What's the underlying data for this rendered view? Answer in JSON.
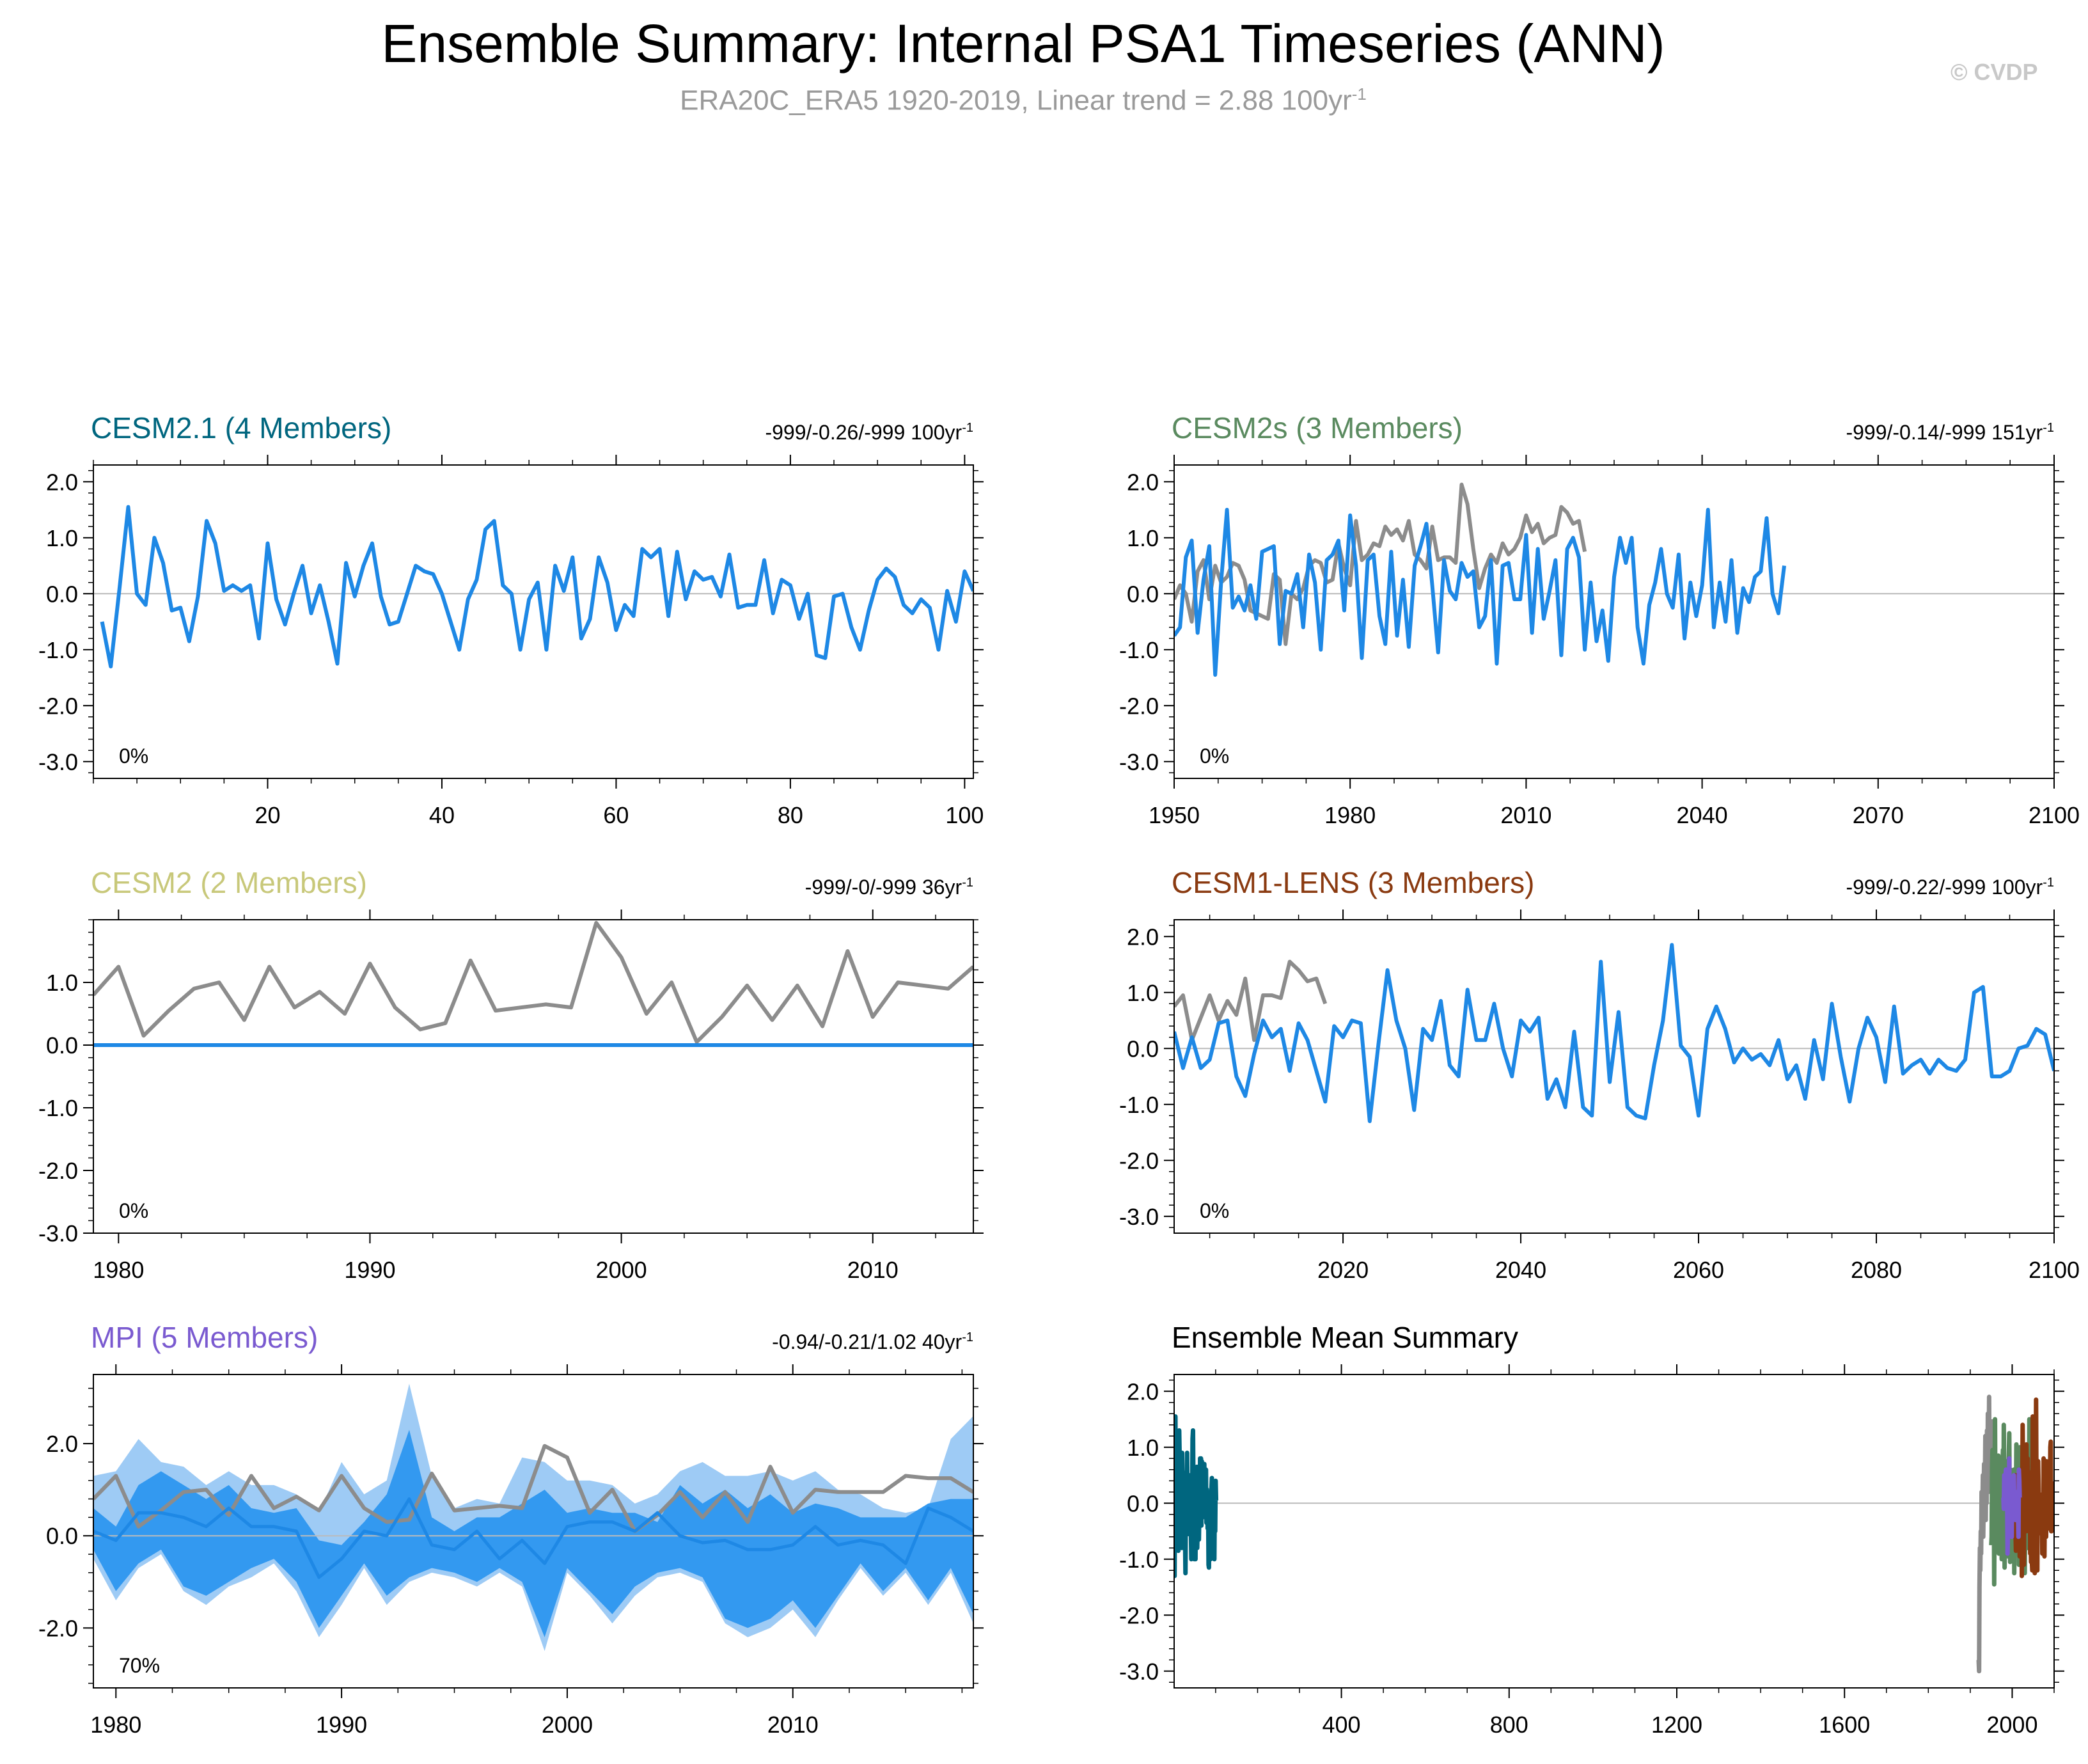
{
  "title": "Ensemble Summary: Internal PSA1 Timeseries (ANN)",
  "subtitle_main": "ERA20C_ERA5 1920-2019, Linear trend = 2.88 100yr",
  "subtitle_exp": "-1",
  "copyright": "© CVDP",
  "colors": {
    "model_line": "#1e88e5",
    "obs_line": "#8c8c8c",
    "spread_outer": "#9ecbf5",
    "spread_inner": "#3399f0"
  },
  "chart_data": [
    {
      "type": "line",
      "title": "CESM2.1 (4 Members)",
      "title_color": "#00667f",
      "right_label": "-999/-0.26/-999 100yr",
      "right_exp": "-1",
      "percent": "0%",
      "xlim": [
        0,
        101
      ],
      "ylim": [
        -3.3,
        2.3
      ],
      "yticks": [
        2.0,
        1.0,
        0.0,
        -1.0,
        -2.0,
        -3.0
      ],
      "ytick_labels": [
        "2.0",
        "1.0",
        "0.0",
        "-1.0",
        "-2.0",
        "-3.0"
      ],
      "xticks": [
        20,
        40,
        60,
        80,
        100
      ],
      "xtick_labels": [
        "20",
        "40",
        "60",
        "80",
        "100"
      ],
      "series": [
        {
          "role": "model",
          "x_start": 1,
          "x_step": 1,
          "values": [
            -0.5,
            -1.3,
            0.1,
            1.55,
            0.0,
            -0.2,
            1.0,
            0.55,
            -0.3,
            -0.25,
            -0.85,
            -0.05,
            1.3,
            0.9,
            0.05,
            0.15,
            0.05,
            0.15,
            -0.8,
            0.9,
            -0.1,
            -0.55,
            0.0,
            0.5,
            -0.35,
            0.15,
            -0.5,
            -1.25,
            0.55,
            -0.05,
            0.5,
            0.9,
            -0.05,
            -0.55,
            -0.5,
            0.0,
            0.5,
            0.4,
            0.35,
            0.0,
            -0.5,
            -1.0,
            -0.1,
            0.25,
            1.15,
            1.3,
            0.15,
            0.0,
            -1.0,
            -0.1,
            0.2,
            -1.0,
            0.5,
            0.05,
            0.65,
            -0.8,
            -0.45,
            0.65,
            0.2,
            -0.65,
            -0.2,
            -0.4,
            0.8,
            0.65,
            0.8,
            -0.4,
            0.75,
            -0.1,
            0.4,
            0.25,
            0.3,
            -0.05,
            0.7,
            -0.25,
            -0.2,
            -0.2,
            0.6,
            -0.35,
            0.25,
            0.15,
            -0.45,
            0.0,
            -1.1,
            -1.15,
            -0.05,
            0.0,
            -0.6,
            -1.0,
            -0.3,
            0.25,
            0.45,
            0.3,
            -0.2,
            -0.35,
            -0.1,
            -0.25,
            -1.0,
            0.05,
            -0.5,
            0.4,
            0.05
          ]
        }
      ]
    },
    {
      "type": "line",
      "title": "CESM2s (3 Members)",
      "title_color": "#5a8a5f",
      "right_label": "-999/-0.14/-999 151yr",
      "right_exp": "-1",
      "percent": "0%",
      "xlim": [
        1950,
        2100
      ],
      "ylim": [
        -3.3,
        2.3
      ],
      "yticks": [
        2.0,
        1.0,
        0.0,
        -1.0,
        -2.0,
        -3.0
      ],
      "ytick_labels": [
        "2.0",
        "1.0",
        "0.0",
        "-1.0",
        "-2.0",
        "-3.0"
      ],
      "xticks": [
        1950,
        1980,
        2010,
        2040,
        2070,
        2100
      ],
      "xtick_labels": [
        "1950",
        "1980",
        "2010",
        "2040",
        "2070",
        "2100"
      ],
      "series": [
        {
          "role": "obs",
          "x_start": 1950,
          "x_step": 1,
          "values": [
            -0.1,
            0.15,
            0.0,
            -0.5,
            0.4,
            0.6,
            -0.1,
            0.5,
            0.2,
            0.3,
            0.55,
            0.5,
            0.25,
            -0.3,
            -0.35,
            -0.4,
            -0.45,
            0.35,
            0.25,
            -0.9,
            0.0,
            -0.1,
            0.1,
            0.5,
            0.6,
            0.55,
            0.2,
            0.25,
            0.9,
            0.45,
            0.15,
            1.3,
            0.6,
            0.7,
            0.9,
            0.85,
            1.2,
            1.05,
            1.15,
            0.95,
            1.3,
            0.7,
            0.6,
            0.45,
            1.2,
            0.6,
            0.65,
            0.65,
            0.55,
            1.95,
            1.6,
            0.8,
            0.1,
            0.45,
            0.7,
            0.55,
            0.9,
            0.7,
            0.8,
            1.0,
            1.4,
            1.1,
            1.25,
            0.9,
            1.0,
            1.05,
            1.55,
            1.45,
            1.25,
            1.3,
            0.75
          ]
        },
        {
          "role": "model",
          "x_start": 1950,
          "x_step": 1,
          "values": [
            -0.75,
            -0.6,
            0.65,
            0.95,
            -0.7,
            0.25,
            0.85,
            -1.45,
            0.2,
            1.5,
            -0.25,
            -0.05,
            -0.3,
            0.15,
            -0.45,
            0.75,
            0.8,
            0.85,
            -0.9,
            0.05,
            0.0,
            0.35,
            -0.6,
            0.7,
            0.2,
            -1.0,
            0.6,
            0.7,
            0.95,
            -0.3,
            1.4,
            0.5,
            -1.15,
            0.6,
            0.7,
            -0.4,
            -0.9,
            0.75,
            -0.75,
            0.25,
            -0.95,
            0.5,
            0.85,
            1.25,
            0.15,
            -1.05,
            0.6,
            0.05,
            -0.1,
            0.55,
            0.3,
            0.4,
            -0.6,
            -0.4,
            0.6,
            -1.25,
            0.5,
            0.55,
            -0.1,
            -0.1,
            1.05,
            -0.7,
            0.8,
            -0.45,
            0.05,
            0.6,
            -1.1,
            0.8,
            1.0,
            0.65,
            -1.0,
            0.2,
            -0.85,
            -0.3,
            -1.2,
            0.3,
            1.0,
            0.55,
            1.0,
            -0.6,
            -1.25,
            -0.2,
            0.2,
            0.8,
            0.0,
            -0.25,
            0.7,
            -0.8,
            0.2,
            -0.4,
            0.15,
            1.5,
            -0.6,
            0.2,
            -0.5,
            0.6,
            -0.7,
            0.1,
            -0.15,
            0.3,
            0.4,
            1.35,
            0.0,
            -0.35,
            0.5
          ]
        }
      ]
    },
    {
      "type": "line",
      "title": "CESM2 (2 Members)",
      "title_color": "#c8c87a",
      "right_label": "-999/-0/-999 36yr",
      "right_exp": "-1",
      "percent": "0%",
      "xlim": [
        1979,
        2014
      ],
      "ylim": [
        -3.0,
        2.0
      ],
      "yticks": [
        1.0,
        0.0,
        -1.0,
        -2.0,
        -3.0
      ],
      "ytick_labels": [
        "1.0",
        "0.0",
        "-1.0",
        "-2.0",
        "-3.0"
      ],
      "xticks": [
        1980,
        1990,
        2000,
        2010
      ],
      "xtick_labels": [
        "1980",
        "1990",
        "2000",
        "2010"
      ],
      "series": [
        {
          "role": "obs",
          "x_start": 1979,
          "x_step": 1,
          "values": [
            0.8,
            1.25,
            0.15,
            0.55,
            0.9,
            1.0,
            0.4,
            1.25,
            0.6,
            0.85,
            0.5,
            1.3,
            0.6,
            0.25,
            0.35,
            1.35,
            0.55,
            0.6,
            0.65,
            0.6,
            1.95,
            1.4,
            0.5,
            1.0,
            0.05,
            0.45,
            0.95,
            0.4,
            0.95,
            0.3,
            1.5,
            0.45,
            1.0,
            0.95,
            0.9,
            1.25
          ]
        },
        {
          "role": "model",
          "x_start": 1979,
          "x_step": 1,
          "values": [
            0,
            0,
            0,
            0,
            0,
            0,
            0,
            0,
            0,
            0,
            0,
            0,
            0,
            0,
            0,
            0,
            0,
            0,
            0,
            0,
            0,
            0,
            0,
            0,
            0,
            0,
            0,
            0,
            0,
            0,
            0,
            0,
            0,
            0,
            0,
            0
          ]
        }
      ]
    },
    {
      "type": "line",
      "title": "CESM1-LENS (3 Members)",
      "title_color": "#8a3a10",
      "right_label": "-999/-0.22/-999 100yr",
      "right_exp": "-1",
      "percent": "0%",
      "xlim": [
        2001,
        2100
      ],
      "ylim": [
        -3.3,
        2.3
      ],
      "yticks": [
        2.0,
        1.0,
        0.0,
        -1.0,
        -2.0,
        -3.0
      ],
      "ytick_labels": [
        "2.0",
        "1.0",
        "0.0",
        "-1.0",
        "-2.0",
        "-3.0"
      ],
      "xticks": [
        2020,
        2040,
        2060,
        2080,
        2100
      ],
      "xtick_labels": [
        "2020",
        "2040",
        "2060",
        "2080",
        "2100"
      ],
      "series": [
        {
          "role": "obs",
          "x_start": 2001,
          "x_step": 1,
          "values": [
            0.75,
            0.95,
            0.15,
            0.55,
            0.95,
            0.5,
            0.85,
            0.6,
            1.25,
            0.15,
            0.95,
            0.95,
            0.9,
            1.55,
            1.4,
            1.2,
            1.25,
            0.8
          ]
        },
        {
          "role": "model",
          "x_start": 2001,
          "x_step": 1,
          "values": [
            0.3,
            -0.35,
            0.2,
            -0.35,
            -0.2,
            0.45,
            0.5,
            -0.5,
            -0.85,
            -0.1,
            0.5,
            0.2,
            0.35,
            -0.4,
            0.45,
            0.15,
            -0.4,
            -0.95,
            0.4,
            0.2,
            0.5,
            0.45,
            -1.3,
            0.1,
            1.4,
            0.5,
            0.0,
            -1.1,
            0.35,
            0.15,
            0.85,
            -0.3,
            -0.5,
            1.05,
            0.15,
            0.15,
            0.8,
            0.0,
            -0.5,
            0.5,
            0.3,
            0.55,
            -0.9,
            -0.55,
            -1.05,
            0.3,
            -1.05,
            -1.2,
            1.55,
            -0.6,
            0.65,
            -1.05,
            -1.2,
            -1.25,
            -0.3,
            0.5,
            1.85,
            0.05,
            -0.15,
            -1.2,
            0.35,
            0.75,
            0.35,
            -0.25,
            0.0,
            -0.2,
            -0.1,
            -0.3,
            0.15,
            -0.55,
            -0.3,
            -0.9,
            0.15,
            -0.55,
            0.8,
            -0.15,
            -0.95,
            0.0,
            0.55,
            0.2,
            -0.6,
            0.75,
            -0.45,
            -0.3,
            -0.2,
            -0.45,
            -0.2,
            -0.35,
            -0.4,
            -0.2,
            1.0,
            1.1,
            -0.5,
            -0.5,
            -0.4,
            0.0,
            0.05,
            0.35,
            0.25,
            -0.4
          ]
        }
      ]
    },
    {
      "type": "area",
      "title": "MPI (5 Members)",
      "title_color": "#7a5ad0",
      "right_label": "-0.94/-0.21/1.02 40yr",
      "right_exp": "-1",
      "percent": "70%",
      "xlim": [
        1979,
        2018
      ],
      "ylim": [
        -3.3,
        3.5
      ],
      "yticks": [
        2.0,
        0.0,
        -2.0
      ],
      "ytick_labels": [
        "2.0",
        "0.0",
        "-2.0"
      ],
      "xticks": [
        1980,
        1990,
        2000,
        2010
      ],
      "xtick_labels": [
        "1980",
        "1990",
        "2000",
        "2010"
      ],
      "band_x_start": 1979,
      "band_outer_upper": [
        1.3,
        1.4,
        2.1,
        1.6,
        1.5,
        1.1,
        1.4,
        1.1,
        1.1,
        0.9,
        0.5,
        1.6,
        0.9,
        1.2,
        3.3,
        1.3,
        0.6,
        0.8,
        0.7,
        1.7,
        1.6,
        1.2,
        1.2,
        1.1,
        0.7,
        0.9,
        1.4,
        1.6,
        1.3,
        1.3,
        1.4,
        1.2,
        1.4,
        1.0,
        0.9,
        0.6,
        0.5,
        0.6,
        2.1,
        2.6
      ],
      "band_outer_lower": [
        -0.5,
        -1.4,
        -0.7,
        -0.4,
        -1.2,
        -1.5,
        -1.1,
        -0.9,
        -0.6,
        -1.2,
        -2.2,
        -1.5,
        -0.7,
        -1.5,
        -1.0,
        -0.8,
        -0.9,
        -1.1,
        -0.8,
        -1.1,
        -2.5,
        -0.8,
        -1.3,
        -1.9,
        -1.3,
        -0.9,
        -0.8,
        -1.0,
        -1.9,
        -2.2,
        -2.0,
        -1.6,
        -2.2,
        -1.4,
        -0.7,
        -1.3,
        -0.8,
        -1.5,
        -0.8,
        -1.9
      ],
      "band_inner_upper": [
        0.6,
        0.2,
        1.1,
        1.4,
        1.1,
        0.8,
        1.1,
        0.6,
        0.5,
        0.6,
        -0.1,
        -0.2,
        0.3,
        0.9,
        2.3,
        0.4,
        0.1,
        0.4,
        0.4,
        0.7,
        1.0,
        0.5,
        0.6,
        0.5,
        0.5,
        0.3,
        1.1,
        0.7,
        1.0,
        0.6,
        0.9,
        0.5,
        0.7,
        0.6,
        0.4,
        0.4,
        0.4,
        0.7,
        0.8,
        0.8
      ],
      "band_inner_lower": [
        -0.3,
        -1.2,
        -0.6,
        -0.3,
        -1.1,
        -1.3,
        -1.0,
        -0.7,
        -0.5,
        -1.0,
        -2.0,
        -1.3,
        -0.6,
        -1.3,
        -0.9,
        -0.7,
        -0.8,
        -1.0,
        -0.7,
        -1.0,
        -2.2,
        -0.7,
        -1.2,
        -1.7,
        -1.1,
        -0.8,
        -0.7,
        -0.9,
        -1.8,
        -2.0,
        -1.8,
        -1.4,
        -2.0,
        -1.3,
        -0.6,
        -1.2,
        -0.7,
        -1.4,
        -0.7,
        -1.7
      ],
      "series": [
        {
          "role": "obs",
          "x_start": 1979,
          "x_step": 1,
          "values": [
            0.8,
            1.3,
            0.2,
            0.55,
            0.95,
            1.0,
            0.45,
            1.3,
            0.6,
            0.85,
            0.55,
            1.3,
            0.6,
            0.3,
            0.35,
            1.35,
            0.55,
            0.6,
            0.65,
            0.6,
            1.95,
            1.7,
            0.5,
            1.0,
            0.1,
            0.45,
            0.95,
            0.4,
            0.95,
            0.3,
            1.5,
            0.5,
            1.0,
            0.95,
            0.95,
            0.95,
            1.3,
            1.25,
            1.25,
            0.95
          ]
        },
        {
          "role": "model",
          "x_start": 1979,
          "x_step": 1,
          "values": [
            0.1,
            -0.1,
            0.5,
            0.5,
            0.4,
            0.2,
            0.6,
            0.2,
            0.2,
            0.1,
            -0.9,
            -0.5,
            0.1,
            0.0,
            0.8,
            -0.2,
            -0.3,
            0.1,
            -0.5,
            -0.1,
            -0.6,
            0.2,
            0.3,
            0.3,
            0.1,
            0.5,
            0.0,
            -0.15,
            -0.1,
            -0.3,
            -0.3,
            -0.2,
            0.2,
            -0.2,
            -0.1,
            -0.2,
            -0.6,
            0.6,
            0.4,
            0.1
          ]
        }
      ]
    },
    {
      "type": "line",
      "title": "Ensemble Mean Summary",
      "title_color": "#000000",
      "xlim": [
        1,
        2100
      ],
      "ylim": [
        -3.3,
        2.3
      ],
      "yticks": [
        2.0,
        1.0,
        0.0,
        -1.0,
        -2.0,
        -3.0
      ],
      "ytick_labels": [
        "2.0",
        "1.0",
        "0.0",
        "-1.0",
        "-2.0",
        "-3.0"
      ],
      "xticks": [
        400,
        800,
        1200,
        1600,
        2000
      ],
      "xtick_labels": [
        "400",
        "800",
        "1200",
        "1600",
        "2000"
      ],
      "series": [
        {
          "role": "summary",
          "color": "#00667f",
          "x_start": 1,
          "x_step": 1,
          "ref": 0
        },
        {
          "role": "summary",
          "color": "#8c8c8c",
          "x_start": 1920,
          "x_step": 1,
          "values": [
            -2.8,
            -3.0,
            -1.5,
            -0.8,
            -1.2,
            -0.5,
            -0.9,
            0.2,
            -0.4,
            -0.1,
            0.5,
            -0.6,
            0.1,
            0.7,
            -0.2,
            0.3,
            1.2,
            -0.3,
            0.8,
            0.0,
            1.3,
            0.4,
            1.6,
            0.2,
            0.9,
            1.9,
            0.5,
            1.1,
            0.6,
            1.5
          ]
        },
        {
          "role": "summary",
          "color": "#5a8a5f",
          "x_start": 1950,
          "x_step": 1,
          "ref": 1
        },
        {
          "role": "summary",
          "color": "#8a3a10",
          "x_start": 2001,
          "x_step": 1,
          "ref": 3
        },
        {
          "role": "summary",
          "color": "#7a5ad0",
          "x_start": 1979,
          "x_step": 1,
          "ref": 4
        }
      ]
    }
  ]
}
